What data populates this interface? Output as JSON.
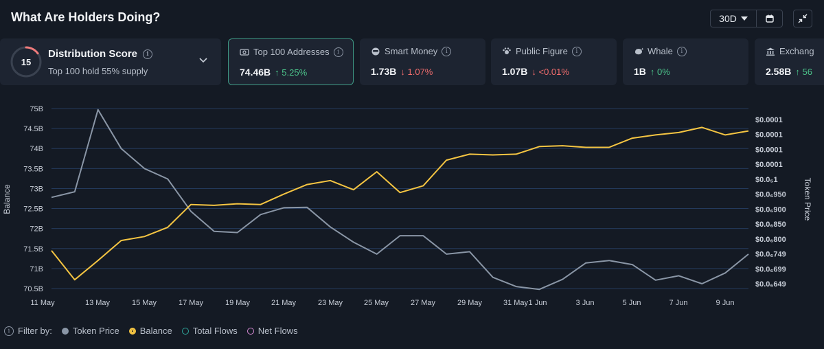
{
  "header": {
    "title": "What Are Holders Doing?",
    "range": "30D"
  },
  "distribution": {
    "score": "15",
    "score_fraction": 0.15,
    "name": "Distribution Score",
    "subtitle": "Top 100 hold 55% supply"
  },
  "cards": [
    {
      "label": "Top 100 Addresses",
      "value": "74.46B",
      "change": "5.25%",
      "direction": "up",
      "icon": "wallet-icon"
    },
    {
      "label": "Smart Money",
      "value": "1.73B",
      "change": "1.07%",
      "direction": "down",
      "icon": "smart-money-icon"
    },
    {
      "label": "Public Figure",
      "value": "1.07B",
      "change": "<0.01%",
      "direction": "down",
      "icon": "public-figure-icon"
    },
    {
      "label": "Whale",
      "value": "1B",
      "change": "0%",
      "direction": "up",
      "icon": "whale-icon"
    },
    {
      "label": "Exchang",
      "value": "2.58B",
      "change": "56",
      "direction": "up",
      "icon": "exchange-icon"
    }
  ],
  "filter": {
    "label": "Filter by:",
    "items": [
      {
        "name": "Token Price",
        "color": "#8a96a6",
        "active": true
      },
      {
        "name": "Balance",
        "color": "#f5c542",
        "active": true
      },
      {
        "name": "Total Flows",
        "color": "#2ea59b",
        "active": false
      },
      {
        "name": "Net Flows",
        "color": "#d98bd6",
        "active": false
      }
    ]
  },
  "colors": {
    "balance": "#f5c542",
    "price": "#8a96a6",
    "grid": "#243a5c",
    "up": "#4cc38a",
    "down": "#f26d6d"
  },
  "chart_data": {
    "type": "line",
    "ylabel": "Balance",
    "y2label": "Token Price",
    "ylim": [
      70.5,
      75
    ],
    "y_ticks": [
      "75B",
      "74.5B",
      "74B",
      "73.5B",
      "73B",
      "72.5B",
      "72B",
      "71.5B",
      "71B",
      "70.5B"
    ],
    "y2_ticks": [
      "$0.0001",
      "$0.0001",
      "$0.0001",
      "$0.0001",
      "$0.0₅1",
      "$0.0₆950",
      "$0.0₆900",
      "$0.0₆850",
      "$0.0₆800",
      "$0.0₆749",
      "$0.0₆699",
      "$0.0₆649"
    ],
    "x_ticks": [
      "11 May",
      "13 May",
      "15 May",
      "17 May",
      "19 May",
      "21 May",
      "23 May",
      "25 May",
      "27 May",
      "29 May",
      "31 May",
      "1 Jun",
      "3 Jun",
      "5 Jun",
      "7 Jun",
      "9 Jun"
    ],
    "x": [
      "11 May",
      "12 May",
      "13 May",
      "14 May",
      "15 May",
      "16 May",
      "17 May",
      "18 May",
      "19 May",
      "20 May",
      "21 May",
      "22 May",
      "23 May",
      "24 May",
      "25 May",
      "26 May",
      "27 May",
      "28 May",
      "29 May",
      "30 May",
      "31 May",
      "1 Jun",
      "2 Jun",
      "3 Jun",
      "4 Jun",
      "5 Jun",
      "6 Jun",
      "7 Jun",
      "8 Jun",
      "9 Jun",
      "10 Jun"
    ],
    "series": [
      {
        "name": "Balance",
        "values": [
          71.45,
          70.72,
          71.2,
          71.7,
          71.8,
          72.03,
          72.6,
          72.58,
          72.62,
          72.6,
          72.86,
          73.1,
          73.2,
          72.97,
          73.42,
          72.9,
          73.07,
          73.71,
          73.86,
          73.84,
          73.86,
          74.05,
          74.07,
          74.03,
          74.03,
          74.26,
          74.34,
          74.4,
          74.53,
          74.34,
          74.44
        ]
      },
      {
        "name": "Token Price",
        "values": [
          72.78,
          72.92,
          74.97,
          74.0,
          73.5,
          73.24,
          72.43,
          71.93,
          71.9,
          72.35,
          72.52,
          72.53,
          72.04,
          71.66,
          71.36,
          71.82,
          71.82,
          71.36,
          71.42,
          70.78,
          70.55,
          70.48,
          70.73,
          71.14,
          71.2,
          71.1,
          70.71,
          70.82,
          70.62,
          70.89,
          71.36
        ]
      }
    ]
  }
}
